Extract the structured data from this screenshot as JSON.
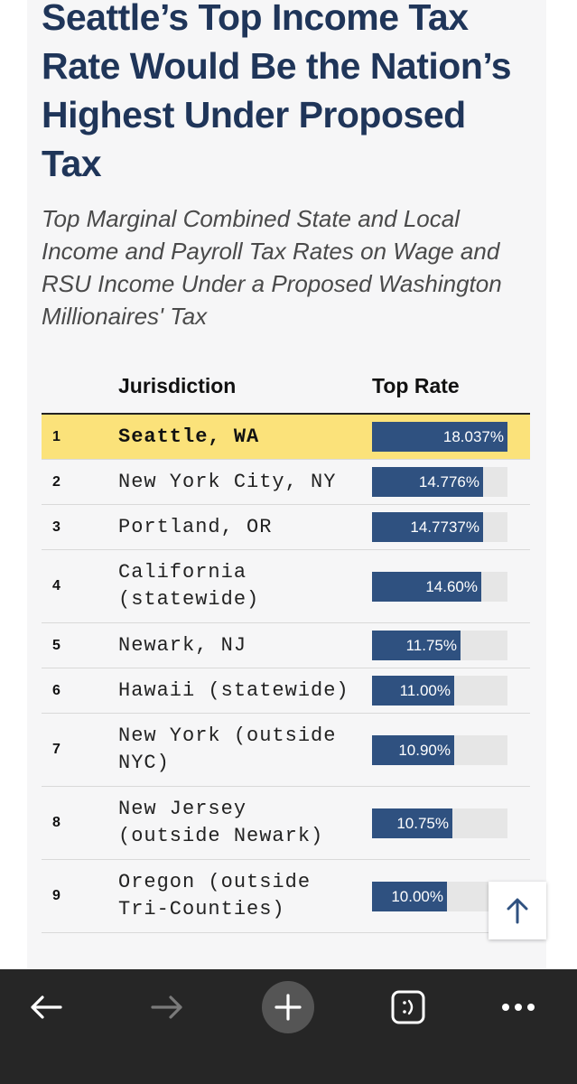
{
  "article": {
    "title": "Seattle’s Top Income Tax Rate Would Be the Nation’s Highest Under Proposed Tax",
    "subtitle": "Top Marginal Combined State and Local Income and Payroll Tax Rates on Wage and RSU Income Under a Proposed Washington Millionaires' Tax"
  },
  "table": {
    "col_jurisdiction": "Jurisdiction",
    "col_rate": "Top Rate",
    "max_rate": 18.037,
    "rows": [
      {
        "rank": "1",
        "jurisdiction": "Seattle, WA",
        "rate_label": "18.037%",
        "rate": 18.037,
        "highlight": true
      },
      {
        "rank": "2",
        "jurisdiction": "New York City, NY",
        "rate_label": "14.776%",
        "rate": 14.776
      },
      {
        "rank": "3",
        "jurisdiction": "Portland, OR",
        "rate_label": "14.7737%",
        "rate": 14.7737
      },
      {
        "rank": "4",
        "jurisdiction": "California (statewide)",
        "rate_label": "14.60%",
        "rate": 14.6
      },
      {
        "rank": "5",
        "jurisdiction": "Newark, NJ",
        "rate_label": "11.75%",
        "rate": 11.75
      },
      {
        "rank": "6",
        "jurisdiction": "Hawaii (statewide)",
        "rate_label": "11.00%",
        "rate": 11.0
      },
      {
        "rank": "7",
        "jurisdiction": "New York (outside NYC)",
        "rate_label": "10.90%",
        "rate": 10.9
      },
      {
        "rank": "8",
        "jurisdiction": "New Jersey (outside Newark)",
        "rate_label": "10.75%",
        "rate": 10.75
      },
      {
        "rank": "9",
        "jurisdiction": "Oregon (outside Tri-Counties)",
        "rate_label": "10.00%",
        "rate": 10.0
      }
    ]
  },
  "icons": {
    "scroll_top": "arrow-up-icon",
    "back": "arrow-left-icon",
    "forward": "arrow-right-icon",
    "new_tab": "plus-icon",
    "tabs": "smiley-tab-icon",
    "menu": "more-dots-icon"
  },
  "colors": {
    "title": "#1f3559",
    "bar": "#2f5180",
    "bar_track": "#e6e6e6",
    "highlight": "#fbe27a",
    "navbar": "#262626"
  }
}
